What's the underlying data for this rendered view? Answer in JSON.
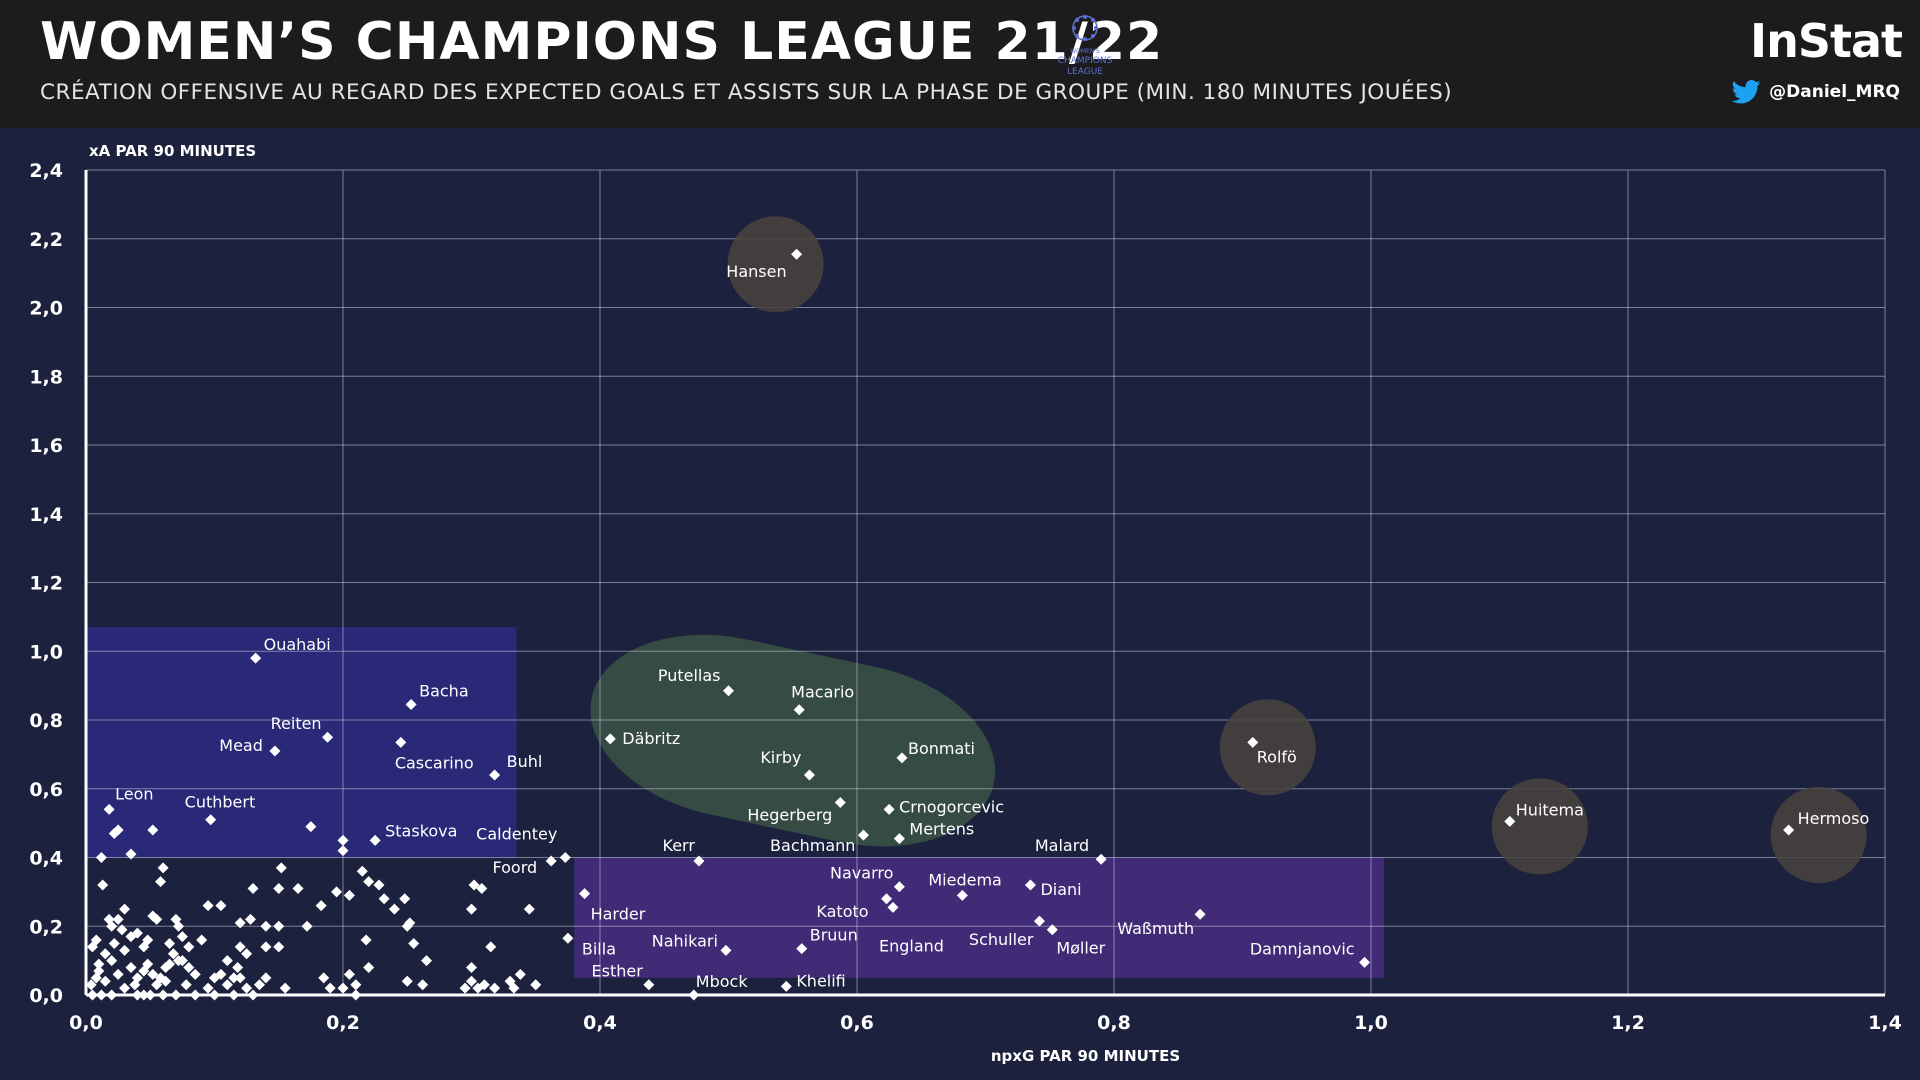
{
  "header": {
    "title": "WOMEN’S CHAMPIONS LEAGUE 21/22",
    "subtitle": "CRÉATION OFFENSIVE AU REGARD DES EXPECTED GOALS ET ASSISTS SUR LA PHASE DE GROUPE (MIN. 180 MINUTES JOUÉES)",
    "brand": "InStat",
    "handle": "@Daniel_MRQ",
    "logo_text": [
      "WOMEN'S",
      "CHAMPIONS",
      "LEAGUE"
    ]
  },
  "colors": {
    "background": "#1c223e",
    "header": "#1c1c1e",
    "grid": "#c8cde0",
    "zone_blue": "#2e2c8c",
    "zone_purple": "#4e2f8a",
    "zone_green": "#3d5a47",
    "halo": "#4a433e",
    "twitter": "#1da1f2"
  },
  "chart_data": {
    "type": "scatter",
    "title": "WOMEN’S CHAMPIONS LEAGUE 21/22",
    "xlabel": "npxG PAR 90 MINUTES",
    "ylabel": "xA PAR 90 MINUTES",
    "xlim": [
      0,
      1.4
    ],
    "ylim": [
      0,
      2.4
    ],
    "xticks": [
      "0,0",
      "0,2",
      "0,4",
      "0,6",
      "0,8",
      "1,0",
      "1,2",
      "1,4"
    ],
    "xtick_values": [
      0,
      0.2,
      0.4,
      0.6,
      0.8,
      1.0,
      1.2,
      1.4
    ],
    "yticks": [
      "0,0",
      "0,2",
      "0,4",
      "0,6",
      "0,8",
      "1,0",
      "1,2",
      "1,4",
      "1,6",
      "1,8",
      "2,0",
      "2,2",
      "2,4"
    ],
    "ytick_values": [
      0,
      0.2,
      0.4,
      0.6,
      0.8,
      1.0,
      1.2,
      1.4,
      1.6,
      1.8,
      2.0,
      2.2,
      2.4
    ],
    "zones": [
      {
        "name": "blue",
        "x0": 0.0,
        "x1": 0.335,
        "y0": 0.4,
        "y1": 1.07
      },
      {
        "name": "purple",
        "x0": 0.38,
        "x1": 1.01,
        "y0": 0.05,
        "y1": 0.4
      }
    ],
    "highlight_players": [
      "Hansen",
      "Rolfö",
      "Huitema",
      "Hermoso"
    ],
    "labeled_points": [
      {
        "name": "Hansen",
        "x": 0.553,
        "y": 2.155
      },
      {
        "name": "Ouahabi",
        "x": 0.132,
        "y": 0.98
      },
      {
        "name": "Bacha",
        "x": 0.253,
        "y": 0.845
      },
      {
        "name": "Reiten",
        "x": 0.188,
        "y": 0.75
      },
      {
        "name": "Mead",
        "x": 0.147,
        "y": 0.71
      },
      {
        "name": "Cascarino",
        "x": 0.245,
        "y": 0.735
      },
      {
        "name": "Buhl",
        "x": 0.318,
        "y": 0.64
      },
      {
        "name": "Leon",
        "x": 0.018,
        "y": 0.54
      },
      {
        "name": "Cuthbert",
        "x": 0.097,
        "y": 0.51
      },
      {
        "name": "Staskova",
        "x": 0.225,
        "y": 0.45
      },
      {
        "name": "Caldentey",
        "x": 0.373,
        "y": 0.4
      },
      {
        "name": "Foord",
        "x": 0.362,
        "y": 0.39
      },
      {
        "name": "Harder",
        "x": 0.388,
        "y": 0.295
      },
      {
        "name": "Billa",
        "x": 0.375,
        "y": 0.165
      },
      {
        "name": "Esther",
        "x": 0.438,
        "y": 0.03
      },
      {
        "name": "Putellas",
        "x": 0.5,
        "y": 0.885
      },
      {
        "name": "Macario",
        "x": 0.555,
        "y": 0.83
      },
      {
        "name": "Däbritz",
        "x": 0.408,
        "y": 0.745
      },
      {
        "name": "Kirby",
        "x": 0.563,
        "y": 0.64
      },
      {
        "name": "Bonmati",
        "x": 0.635,
        "y": 0.69
      },
      {
        "name": "Hegerberg",
        "x": 0.587,
        "y": 0.56
      },
      {
        "name": "Crnogorcevic",
        "x": 0.625,
        "y": 0.54
      },
      {
        "name": "Bachmann",
        "x": 0.605,
        "y": 0.465
      },
      {
        "name": "Mertens",
        "x": 0.633,
        "y": 0.455
      },
      {
        "name": "Kerr",
        "x": 0.477,
        "y": 0.39
      },
      {
        "name": "Navarro",
        "x": 0.633,
        "y": 0.315
      },
      {
        "name": "Katoto",
        "x": 0.623,
        "y": 0.28
      },
      {
        "name": "England",
        "x": 0.628,
        "y": 0.255
      },
      {
        "name": "Miedema",
        "x": 0.682,
        "y": 0.29
      },
      {
        "name": "Diani",
        "x": 0.735,
        "y": 0.32
      },
      {
        "name": "Schuller",
        "x": 0.742,
        "y": 0.215
      },
      {
        "name": "Møller",
        "x": 0.752,
        "y": 0.19
      },
      {
        "name": "Malard",
        "x": 0.79,
        "y": 0.395
      },
      {
        "name": "Waßmuth",
        "x": 0.867,
        "y": 0.235
      },
      {
        "name": "Nahikari",
        "x": 0.498,
        "y": 0.13
      },
      {
        "name": "Bruun",
        "x": 0.557,
        "y": 0.135
      },
      {
        "name": "Mbock",
        "x": 0.473,
        "y": 0.0
      },
      {
        "name": "Khelifi",
        "x": 0.545,
        "y": 0.025
      },
      {
        "name": "Damnjanovic",
        "x": 0.995,
        "y": 0.095
      },
      {
        "name": "Rolfö",
        "x": 0.908,
        "y": 0.735
      },
      {
        "name": "Huitema",
        "x": 1.108,
        "y": 0.505
      },
      {
        "name": "Hermoso",
        "x": 1.325,
        "y": 0.48
      }
    ],
    "other_points": [
      [
        0.012,
        0.4
      ],
      [
        0.022,
        0.47
      ],
      [
        0.025,
        0.48
      ],
      [
        0.052,
        0.48
      ],
      [
        0.035,
        0.41
      ],
      [
        0.013,
        0.32
      ],
      [
        0.06,
        0.37
      ],
      [
        0.058,
        0.33
      ],
      [
        0.175,
        0.49
      ],
      [
        0.2,
        0.45
      ],
      [
        0.2,
        0.42
      ],
      [
        0.13,
        0.31
      ],
      [
        0.152,
        0.37
      ],
      [
        0.165,
        0.31
      ],
      [
        0.15,
        0.31
      ],
      [
        0.12,
        0.21
      ],
      [
        0.14,
        0.2
      ],
      [
        0.15,
        0.2
      ],
      [
        0.128,
        0.22
      ],
      [
        0.172,
        0.2
      ],
      [
        0.183,
        0.26
      ],
      [
        0.205,
        0.29
      ],
      [
        0.195,
        0.3
      ],
      [
        0.215,
        0.36
      ],
      [
        0.22,
        0.33
      ],
      [
        0.228,
        0.32
      ],
      [
        0.232,
        0.28
      ],
      [
        0.24,
        0.25
      ],
      [
        0.248,
        0.28
      ],
      [
        0.252,
        0.21
      ],
      [
        0.25,
        0.2
      ],
      [
        0.218,
        0.16
      ],
      [
        0.255,
        0.15
      ],
      [
        0.265,
        0.1
      ],
      [
        0.302,
        0.32
      ],
      [
        0.308,
        0.31
      ],
      [
        0.3,
        0.25
      ],
      [
        0.315,
        0.14
      ],
      [
        0.345,
        0.25
      ],
      [
        0.3,
        0.08
      ],
      [
        0.3,
        0.04
      ],
      [
        0.305,
        0.02
      ],
      [
        0.31,
        0.03
      ],
      [
        0.318,
        0.02
      ],
      [
        0.33,
        0.04
      ],
      [
        0.338,
        0.06
      ],
      [
        0.35,
        0.03
      ],
      [
        0.333,
        0.02
      ],
      [
        0.295,
        0.02
      ],
      [
        0.262,
        0.03
      ],
      [
        0.25,
        0.04
      ],
      [
        0.22,
        0.08
      ],
      [
        0.205,
        0.06
      ],
      [
        0.21,
        0.03
      ],
      [
        0.2,
        0.02
      ],
      [
        0.21,
        0.0
      ],
      [
        0.185,
        0.05
      ],
      [
        0.19,
        0.02
      ],
      [
        0.155,
        0.02
      ],
      [
        0.15,
        0.14
      ],
      [
        0.14,
        0.14
      ],
      [
        0.125,
        0.12
      ],
      [
        0.12,
        0.14
      ],
      [
        0.115,
        0.05
      ],
      [
        0.1,
        0.05
      ],
      [
        0.105,
        0.06
      ],
      [
        0.11,
        0.03
      ],
      [
        0.095,
        0.26
      ],
      [
        0.105,
        0.26
      ],
      [
        0.09,
        0.16
      ],
      [
        0.07,
        0.22
      ],
      [
        0.072,
        0.2
      ],
      [
        0.075,
        0.17
      ],
      [
        0.065,
        0.15
      ],
      [
        0.052,
        0.23
      ],
      [
        0.055,
        0.22
      ],
      [
        0.048,
        0.16
      ],
      [
        0.045,
        0.14
      ],
      [
        0.035,
        0.17
      ],
      [
        0.04,
        0.18
      ],
      [
        0.03,
        0.25
      ],
      [
        0.025,
        0.22
      ],
      [
        0.02,
        0.2
      ],
      [
        0.018,
        0.22
      ],
      [
        0.028,
        0.19
      ],
      [
        0.022,
        0.15
      ],
      [
        0.015,
        0.12
      ],
      [
        0.01,
        0.09
      ],
      [
        0.005,
        0.14
      ],
      [
        0.008,
        0.05
      ],
      [
        0.004,
        0.03
      ],
      [
        0.005,
        0.0
      ],
      [
        0.012,
        0.0
      ],
      [
        0.02,
        0.0
      ],
      [
        0.03,
        0.02
      ],
      [
        0.038,
        0.03
      ],
      [
        0.04,
        0.05
      ],
      [
        0.045,
        0.07
      ],
      [
        0.048,
        0.09
      ],
      [
        0.052,
        0.06
      ],
      [
        0.058,
        0.05
      ],
      [
        0.062,
        0.04
      ],
      [
        0.065,
        0.09
      ],
      [
        0.068,
        0.12
      ],
      [
        0.075,
        0.1
      ],
      [
        0.08,
        0.08
      ],
      [
        0.085,
        0.06
      ],
      [
        0.078,
        0.03
      ],
      [
        0.07,
        0.0
      ],
      [
        0.06,
        0.0
      ],
      [
        0.05,
        0.0
      ],
      [
        0.04,
        0.0
      ],
      [
        0.085,
        0.0
      ],
      [
        0.095,
        0.02
      ],
      [
        0.1,
        0.0
      ],
      [
        0.115,
        0.0
      ],
      [
        0.125,
        0.02
      ],
      [
        0.13,
        0.0
      ],
      [
        0.135,
        0.03
      ],
      [
        0.14,
        0.05
      ],
      [
        0.015,
        0.04
      ],
      [
        0.025,
        0.06
      ],
      [
        0.035,
        0.08
      ],
      [
        0.01,
        0.07
      ],
      [
        0.02,
        0.1
      ],
      [
        0.03,
        0.13
      ],
      [
        0.008,
        0.16
      ],
      [
        0.045,
        0.0
      ],
      [
        0.055,
        0.03
      ],
      [
        0.062,
        0.08
      ],
      [
        0.072,
        0.1
      ],
      [
        0.08,
        0.14
      ],
      [
        0.11,
        0.1
      ],
      [
        0.118,
        0.08
      ],
      [
        0.12,
        0.05
      ]
    ]
  }
}
